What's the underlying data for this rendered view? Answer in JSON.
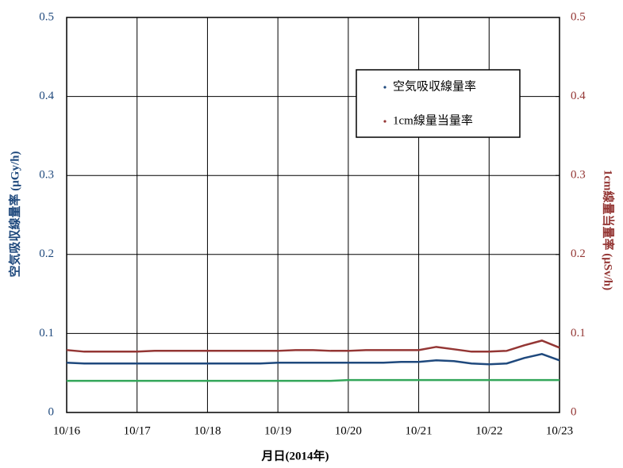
{
  "chart_data": {
    "type": "line",
    "x_label": "月日(2014年)",
    "y_label": "空気吸収線量率 (μGy/h)",
    "y2_label": "1cm線量当量率 (μSv/h)",
    "xlim": [
      16,
      23
    ],
    "xticks": [
      {
        "value": 16,
        "label": "10/16"
      },
      {
        "value": 17,
        "label": "10/17"
      },
      {
        "value": 18,
        "label": "10/18"
      },
      {
        "value": 19,
        "label": "10/19"
      },
      {
        "value": 20,
        "label": "10/20"
      },
      {
        "value": 21,
        "label": "10/21"
      },
      {
        "value": 22,
        "label": "10/22"
      },
      {
        "value": 23,
        "label": "10/23"
      }
    ],
    "ylim": [
      0,
      0.5
    ],
    "yticks": [
      0,
      0.1,
      0.2,
      0.3,
      0.4,
      0.5
    ],
    "y2lim": [
      0,
      0.5
    ],
    "y2ticks": [
      0,
      0.1,
      0.2,
      0.3,
      0.4,
      0.5
    ],
    "grid": true,
    "legend": "upper right",
    "x": [
      16,
      16.25,
      16.5,
      16.75,
      17,
      17.25,
      17.5,
      17.75,
      18,
      18.25,
      18.5,
      18.75,
      19,
      19.25,
      19.5,
      19.75,
      20,
      20.25,
      20.5,
      20.75,
      21,
      21.25,
      21.5,
      21.75,
      22,
      22.25,
      22.5,
      22.75,
      23
    ],
    "series": [
      {
        "name": "空気吸収線量率",
        "color": "#1f497d",
        "axis": "y",
        "values": [
          0.063,
          0.062,
          0.062,
          0.062,
          0.062,
          0.062,
          0.062,
          0.062,
          0.062,
          0.062,
          0.062,
          0.062,
          0.063,
          0.063,
          0.063,
          0.063,
          0.063,
          0.063,
          0.063,
          0.064,
          0.064,
          0.066,
          0.065,
          0.062,
          0.061,
          0.062,
          0.069,
          0.074,
          0.066
        ]
      },
      {
        "name": "1cm線量当量率",
        "color": "#943634",
        "axis": "y2",
        "values": [
          0.079,
          0.077,
          0.077,
          0.077,
          0.077,
          0.078,
          0.078,
          0.078,
          0.078,
          0.078,
          0.078,
          0.078,
          0.078,
          0.079,
          0.079,
          0.078,
          0.078,
          0.079,
          0.079,
          0.079,
          0.079,
          0.083,
          0.08,
          0.077,
          0.077,
          0.078,
          0.085,
          0.091,
          0.082
        ]
      },
      {
        "color": "#33a65a",
        "axis": "y",
        "values": [
          0.04,
          0.04,
          0.04,
          0.04,
          0.04,
          0.04,
          0.04,
          0.04,
          0.04,
          0.04,
          0.04,
          0.04,
          0.04,
          0.04,
          0.04,
          0.04,
          0.041,
          0.041,
          0.041,
          0.041,
          0.041,
          0.041,
          0.041,
          0.041,
          0.041,
          0.041,
          0.041,
          0.041,
          0.041
        ]
      }
    ]
  }
}
